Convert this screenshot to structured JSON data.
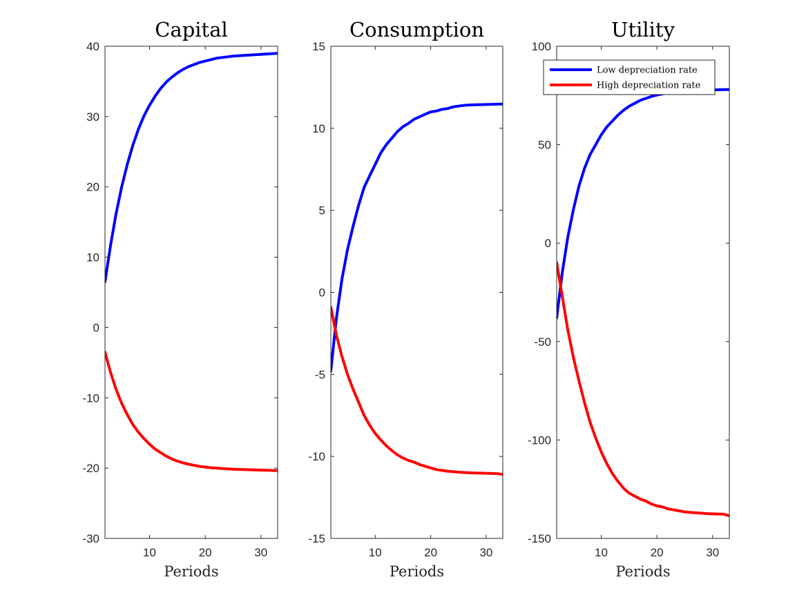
{
  "chart_data": [
    {
      "type": "line",
      "title": "Capital",
      "xlabel": "Periods",
      "ylabel": "",
      "xlim": [
        2,
        33
      ],
      "ylim": [
        -30,
        40
      ],
      "xticks": [
        10,
        20,
        30
      ],
      "yticks": [
        -30,
        -20,
        -10,
        0,
        10,
        20,
        30,
        40
      ],
      "legend": null,
      "series": [
        {
          "color": "#0000ff",
          "x": [
            2,
            3,
            4,
            5,
            6,
            7,
            8,
            9,
            10,
            11,
            12,
            13,
            14,
            15,
            16,
            17,
            18,
            19,
            20,
            21,
            22,
            23,
            24,
            25,
            26,
            27,
            28,
            29,
            30,
            31,
            32,
            33
          ],
          "y": [
            6.5,
            11.7,
            16.2,
            20.0,
            23.2,
            25.9,
            28.2,
            30.1,
            31.6,
            32.9,
            34.0,
            34.9,
            35.6,
            36.2,
            36.7,
            37.1,
            37.4,
            37.7,
            37.9,
            38.1,
            38.3,
            38.4,
            38.5,
            38.6,
            38.65,
            38.7,
            38.75,
            38.8,
            38.85,
            38.9,
            38.95,
            39.0
          ]
        },
        {
          "color": "#ff0000",
          "x": [
            2,
            3,
            4,
            5,
            6,
            7,
            8,
            9,
            10,
            11,
            12,
            13,
            14,
            15,
            16,
            17,
            18,
            19,
            20,
            21,
            22,
            23,
            24,
            25,
            26,
            27,
            28,
            29,
            30,
            31,
            32,
            33
          ],
          "y": [
            -3.5,
            -6.4,
            -8.8,
            -10.8,
            -12.4,
            -13.8,
            -14.9,
            -15.8,
            -16.6,
            -17.3,
            -17.8,
            -18.3,
            -18.7,
            -19.0,
            -19.25,
            -19.45,
            -19.6,
            -19.75,
            -19.85,
            -19.95,
            -20.0,
            -20.05,
            -20.1,
            -20.15,
            -20.18,
            -20.2,
            -20.23,
            -20.25,
            -20.28,
            -20.3,
            -20.33,
            -20.35
          ]
        }
      ]
    },
    {
      "type": "line",
      "title": "Consumption",
      "xlabel": "Periods",
      "ylabel": "",
      "xlim": [
        2,
        33
      ],
      "ylim": [
        -15,
        15
      ],
      "xticks": [
        10,
        20,
        30
      ],
      "yticks": [
        -15,
        -10,
        -5,
        0,
        5,
        10,
        15
      ],
      "legend": null,
      "series": [
        {
          "color": "#0000ff",
          "x": [
            2,
            3,
            4,
            5,
            6,
            7,
            8,
            9,
            10,
            11,
            12,
            13,
            14,
            15,
            16,
            17,
            18,
            19,
            20,
            21,
            22,
            23,
            24,
            25,
            26,
            27,
            28,
            29,
            30,
            31,
            32,
            33
          ],
          "y": [
            -4.8,
            -1.6,
            0.8,
            2.6,
            4.0,
            5.3,
            6.4,
            7.1,
            7.8,
            8.5,
            9.0,
            9.4,
            9.8,
            10.1,
            10.3,
            10.55,
            10.7,
            10.85,
            11.0,
            11.05,
            11.15,
            11.2,
            11.3,
            11.35,
            11.4,
            11.42,
            11.43,
            11.44,
            11.45,
            11.46,
            11.47,
            11.48
          ]
        },
        {
          "color": "#ff0000",
          "x": [
            2,
            3,
            4,
            5,
            6,
            7,
            8,
            9,
            10,
            11,
            12,
            13,
            14,
            15,
            16,
            17,
            18,
            19,
            20,
            21,
            22,
            23,
            24,
            25,
            26,
            27,
            28,
            29,
            30,
            31,
            32,
            33
          ],
          "y": [
            -0.9,
            -2.6,
            -3.9,
            -5.0,
            -5.9,
            -6.7,
            -7.5,
            -8.1,
            -8.6,
            -9.0,
            -9.35,
            -9.65,
            -9.9,
            -10.1,
            -10.25,
            -10.35,
            -10.5,
            -10.6,
            -10.7,
            -10.8,
            -10.85,
            -10.9,
            -10.93,
            -10.96,
            -10.98,
            -11.0,
            -11.01,
            -11.02,
            -11.03,
            -11.04,
            -11.05,
            -11.1
          ]
        }
      ]
    },
    {
      "type": "line",
      "title": "Utility",
      "xlabel": "Periods",
      "ylabel": "",
      "xlim": [
        2,
        33
      ],
      "ylim": [
        -150,
        100
      ],
      "xticks": [
        10,
        20,
        30
      ],
      "yticks": [
        -150,
        -100,
        -50,
        0,
        50,
        100
      ],
      "legend": {
        "placement": "top-right",
        "entries": [
          "Low depreciation rate",
          "High depreciation rate"
        ]
      },
      "series": [
        {
          "name": "Low depreciation rate",
          "color": "#0000ff",
          "x": [
            2,
            3,
            4,
            5,
            6,
            7,
            8,
            9,
            10,
            11,
            12,
            13,
            14,
            15,
            16,
            17,
            18,
            19,
            20,
            21,
            22,
            23,
            24,
            25,
            26,
            27,
            28,
            29,
            30,
            31,
            32,
            33
          ],
          "y": [
            -38,
            -15,
            3,
            17,
            29,
            38,
            45,
            50,
            55,
            59,
            62,
            65,
            67.5,
            69.5,
            71,
            72.5,
            73.5,
            74.5,
            75.2,
            75.8,
            76.3,
            76.7,
            77,
            77.2,
            77.4,
            77.5,
            77.6,
            77.7,
            77.8,
            77.9,
            78,
            78
          ]
        },
        {
          "name": "High depreciation rate",
          "color": "#ff0000",
          "x": [
            2,
            3,
            4,
            5,
            6,
            7,
            8,
            9,
            10,
            11,
            12,
            13,
            14,
            15,
            16,
            17,
            18,
            19,
            20,
            21,
            22,
            23,
            24,
            25,
            26,
            27,
            28,
            29,
            30,
            31,
            32,
            33
          ],
          "y": [
            -10,
            -27,
            -44,
            -58,
            -70,
            -81,
            -91,
            -99,
            -106,
            -112,
            -117,
            -121,
            -124.5,
            -127,
            -128.5,
            -130,
            -131,
            -132.5,
            -133.5,
            -134,
            -135,
            -135.5,
            -136,
            -136.5,
            -136.8,
            -137,
            -137.2,
            -137.4,
            -137.5,
            -137.6,
            -137.7,
            -138.5
          ]
        }
      ]
    }
  ]
}
